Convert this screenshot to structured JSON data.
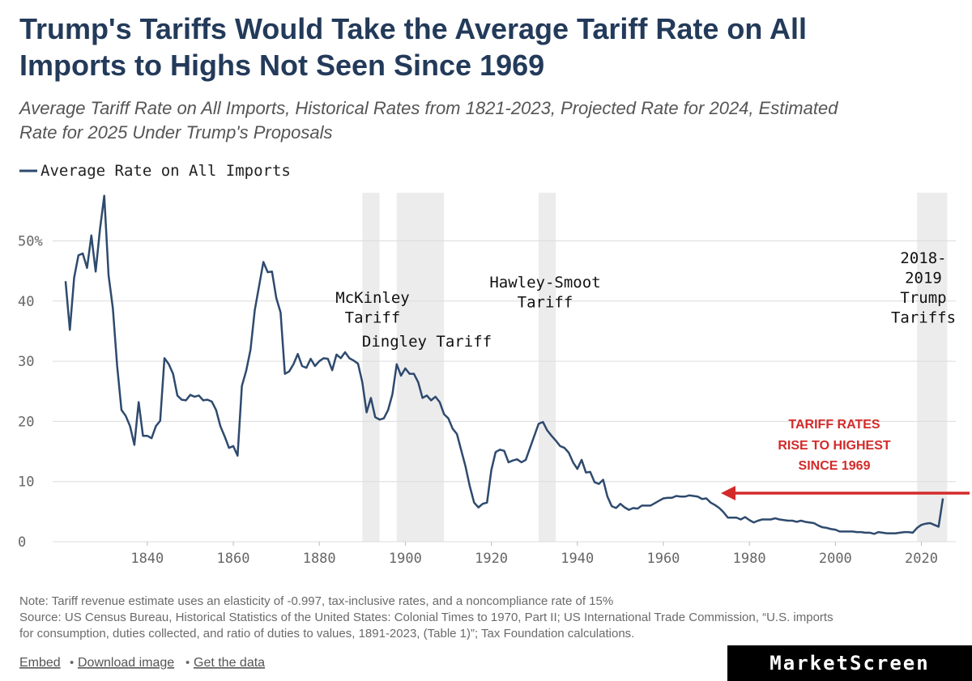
{
  "chart_data": {
    "type": "line",
    "title_lines": [
      "Trump's Tariffs Would Take the Average Tariff Rate on All",
      "Imports to Highs Not Seen Since 1969"
    ],
    "subtitle_lines": [
      "Average Tariff Rate on All Imports, Historical Rates from 1821-2023, Projected Rate for 2024, Estimated",
      "Rate for 2025 Under Trump's Proposals"
    ],
    "xlim": [
      1818,
      2028
    ],
    "xticks": [
      1840,
      1860,
      1880,
      1900,
      1920,
      1940,
      1960,
      1980,
      2000,
      2020
    ],
    "ylim": [
      0,
      58
    ],
    "yticks": [
      0,
      10,
      20,
      30,
      40,
      {
        "value": 50,
        "label": "50%"
      }
    ],
    "grid": true,
    "shaded_periods": [
      {
        "start": 1890,
        "end": 1894,
        "label_lines": [
          "McKinley",
          "Tariff"
        ]
      },
      {
        "start": 1898,
        "end": 1909,
        "label_lines": [
          "Dingley Tariff"
        ]
      },
      {
        "start": 1931,
        "end": 1935,
        "label_lines": [
          "Hawley-Smoot",
          "Tariff"
        ]
      },
      {
        "start": 2019,
        "end": 2026,
        "label_lines": [
          "2018-",
          "2019",
          "Trump",
          "Tariffs"
        ]
      }
    ],
    "arrow_note_lines": [
      "TARIFF RATES",
      "RISE TO HIGHEST",
      "SINCE 1969"
    ],
    "x": [
      1821,
      1822,
      1823,
      1824,
      1825,
      1826,
      1827,
      1828,
      1829,
      1830,
      1831,
      1832,
      1833,
      1834,
      1835,
      1836,
      1837,
      1838,
      1839,
      1840,
      1841,
      1842,
      1843,
      1844,
      1845,
      1846,
      1847,
      1848,
      1849,
      1850,
      1851,
      1852,
      1853,
      1854,
      1855,
      1856,
      1857,
      1858,
      1859,
      1860,
      1861,
      1862,
      1863,
      1864,
      1865,
      1866,
      1867,
      1868,
      1869,
      1870,
      1871,
      1872,
      1873,
      1874,
      1875,
      1876,
      1877,
      1878,
      1879,
      1880,
      1881,
      1882,
      1883,
      1884,
      1885,
      1886,
      1887,
      1888,
      1889,
      1890,
      1891,
      1892,
      1893,
      1894,
      1895,
      1896,
      1897,
      1898,
      1899,
      1900,
      1901,
      1902,
      1903,
      1904,
      1905,
      1906,
      1907,
      1908,
      1909,
      1910,
      1911,
      1912,
      1913,
      1914,
      1915,
      1916,
      1917,
      1918,
      1919,
      1920,
      1921,
      1922,
      1923,
      1924,
      1925,
      1926,
      1927,
      1928,
      1929,
      1930,
      1931,
      1932,
      1933,
      1934,
      1935,
      1936,
      1937,
      1938,
      1939,
      1940,
      1941,
      1942,
      1943,
      1944,
      1945,
      1946,
      1947,
      1948,
      1949,
      1950,
      1951,
      1952,
      1953,
      1954,
      1955,
      1956,
      1957,
      1958,
      1959,
      1960,
      1961,
      1962,
      1963,
      1964,
      1965,
      1966,
      1967,
      1968,
      1969,
      1970,
      1971,
      1972,
      1973,
      1974,
      1975,
      1976,
      1977,
      1978,
      1979,
      1980,
      1981,
      1982,
      1983,
      1984,
      1985,
      1986,
      1987,
      1988,
      1989,
      1990,
      1991,
      1992,
      1993,
      1994,
      1995,
      1996,
      1997,
      1998,
      1999,
      2000,
      2001,
      2002,
      2003,
      2004,
      2005,
      2006,
      2007,
      2008,
      2009,
      2010,
      2011,
      2012,
      2013,
      2014,
      2015,
      2016,
      2017,
      2018,
      2019,
      2020,
      2021,
      2022,
      2023,
      2024,
      2025
    ],
    "series": [
      {
        "name": "Average Rate on All Imports",
        "color": "#2e4a6e",
        "values": [
          43.3,
          35.2,
          43.9,
          47.6,
          47.9,
          45.5,
          50.9,
          44.9,
          51.9,
          57.5,
          44.3,
          38.8,
          29.2,
          21.9,
          20.9,
          19.2,
          16.1,
          23.2,
          17.6,
          17.6,
          17.2,
          19.2,
          20.1,
          30.5,
          29.5,
          27.9,
          24.3,
          23.6,
          23.5,
          24.4,
          24.1,
          24.3,
          23.5,
          23.6,
          23.3,
          21.9,
          19.2,
          17.5,
          15.6,
          15.9,
          14.3,
          25.9,
          28.4,
          31.9,
          38.5,
          42.5,
          46.5,
          44.8,
          44.9,
          40.5,
          38.1,
          27.9,
          28.3,
          29.5,
          31.2,
          29.2,
          28.9,
          30.4,
          29.2,
          30.0,
          30.5,
          30.4,
          28.5,
          31.1,
          30.5,
          31.5,
          30.5,
          30.1,
          29.6,
          26.5,
          21.5,
          23.9,
          20.7,
          20.3,
          20.5,
          21.9,
          24.5,
          29.5,
          27.6,
          28.8,
          27.9,
          27.9,
          26.5,
          23.9,
          24.3,
          23.5,
          24.1,
          23.2,
          21.2,
          20.5,
          18.8,
          17.9,
          15.2,
          12.5,
          9.2,
          6.5,
          5.7,
          6.3,
          6.5,
          11.9,
          14.9,
          15.3,
          15.1,
          13.2,
          13.5,
          13.7,
          13.2,
          13.6,
          15.6,
          17.6,
          19.6,
          19.9,
          18.5,
          17.6,
          16.8,
          15.9,
          15.6,
          14.8,
          13.2,
          12.1,
          13.6,
          11.5,
          11.6,
          9.9,
          9.6,
          10.3,
          7.5,
          5.9,
          5.6,
          6.3,
          5.7,
          5.3,
          5.6,
          5.5,
          6.0,
          6.0,
          6.0,
          6.4,
          6.8,
          7.2,
          7.3,
          7.3,
          7.6,
          7.5,
          7.5,
          7.7,
          7.6,
          7.5,
          7.1,
          7.2,
          6.5,
          6.1,
          5.6,
          4.9,
          4.0,
          4.0,
          4.0,
          3.7,
          4.1,
          3.6,
          3.2,
          3.5,
          3.7,
          3.7,
          3.7,
          3.9,
          3.7,
          3.6,
          3.5,
          3.5,
          3.3,
          3.5,
          3.3,
          3.2,
          3.1,
          2.7,
          2.4,
          2.3,
          2.1,
          2.0,
          1.7,
          1.7,
          1.7,
          1.7,
          1.6,
          1.6,
          1.5,
          1.5,
          1.3,
          1.6,
          1.5,
          1.4,
          1.4,
          1.4,
          1.5,
          1.6,
          1.6,
          1.5,
          2.3,
          2.8,
          3.0,
          3.1,
          2.8,
          2.5,
          7.2
        ]
      }
    ],
    "note": "Note: Tariff revenue estimate uses an elasticity of -0.997, tax-inclusive rates, and a noncompliance rate of 15%",
    "source_lines": [
      "Source: US Census Bureau, Historical Statistics of the United States: Colonial Times to 1970, Part II; US International Trade Commission, “U.S. imports",
      "for consumption, duties collected, and ratio of duties to values, 1891-2023, (Table 1)”; Tax Foundation calculations."
    ],
    "links": [
      "Embed",
      "Download image",
      "Get the data"
    ],
    "link_separator": "•",
    "brand": "MarketScreen"
  }
}
